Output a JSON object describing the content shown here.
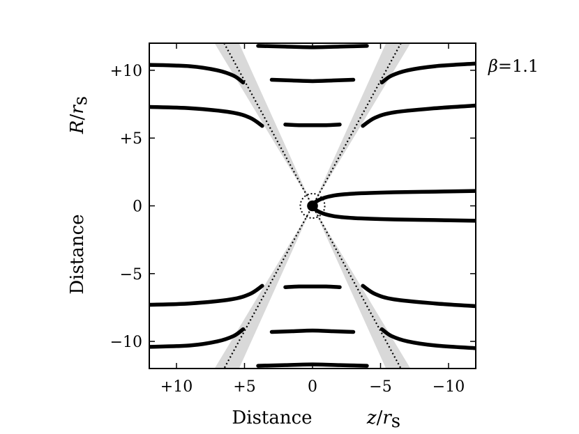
{
  "chart_data": {
    "type": "line",
    "title": "",
    "xlabel": {
      "word": "Distance",
      "symbol": "z",
      "unit_symbol": "r",
      "unit_sub": "s"
    },
    "ylabel": {
      "word": "Distance",
      "symbol": "R",
      "unit_symbol": "r",
      "unit_sub": "s"
    },
    "xlim": [
      12,
      -12
    ],
    "ylim": [
      -12,
      12
    ],
    "x_ticks": [
      {
        "value": 10,
        "label": "+10"
      },
      {
        "value": 5,
        "label": "+5"
      },
      {
        "value": 0,
        "label": "0"
      },
      {
        "value": -5,
        "label": "−5"
      },
      {
        "value": -10,
        "label": "−10"
      }
    ],
    "y_ticks": [
      {
        "value": 10,
        "label": "+10"
      },
      {
        "value": 5,
        "label": "+5"
      },
      {
        "value": 0,
        "label": "0"
      },
      {
        "value": -5,
        "label": "−5"
      },
      {
        "value": -10,
        "label": "−10"
      }
    ],
    "annotation": {
      "symbol": "β",
      "equals": "=",
      "value": "1.1"
    },
    "grid": false,
    "series": [
      {
        "style": "thick",
        "points": [
          [
            -12,
            1.1
          ],
          [
            -9,
            1.05
          ],
          [
            -6,
            1.0
          ],
          [
            -3,
            0.9
          ],
          [
            -1.5,
            0.75
          ],
          [
            -0.5,
            0.45
          ],
          [
            0,
            0
          ],
          [
            -0.5,
            -0.45
          ],
          [
            -1.5,
            -0.75
          ],
          [
            -3,
            -0.9
          ],
          [
            -6,
            -1.0
          ],
          [
            -9,
            -1.05
          ],
          [
            -12,
            -1.1
          ]
        ]
      },
      {
        "style": "thick",
        "points": [
          [
            -2.0,
            6.0
          ],
          [
            -1.0,
            5.95
          ],
          [
            0,
            5.95
          ],
          [
            1.0,
            5.95
          ],
          [
            2.0,
            6.0
          ]
        ]
      },
      {
        "style": "thick",
        "points": [
          [
            -3.0,
            9.3
          ],
          [
            -1.5,
            9.25
          ],
          [
            0,
            9.2
          ],
          [
            1.5,
            9.25
          ],
          [
            3.0,
            9.3
          ]
        ]
      },
      {
        "style": "thick",
        "points": [
          [
            -4.0,
            11.8
          ],
          [
            -2,
            11.75
          ],
          [
            0,
            11.7
          ],
          [
            2,
            11.75
          ],
          [
            4.0,
            11.8
          ]
        ]
      },
      {
        "style": "thick",
        "points": [
          [
            12,
            7.3
          ],
          [
            9,
            7.2
          ],
          [
            6,
            6.9
          ],
          [
            4.6,
            6.5
          ],
          [
            3.7,
            5.9
          ]
        ]
      },
      {
        "style": "thick",
        "points": [
          [
            -3.7,
            5.9
          ],
          [
            -4.6,
            6.5
          ],
          [
            -6,
            6.9
          ],
          [
            -9,
            7.2
          ],
          [
            -12,
            7.4
          ]
        ]
      },
      {
        "style": "thick",
        "points": [
          [
            12,
            10.4
          ],
          [
            9,
            10.3
          ],
          [
            7,
            10.0
          ],
          [
            5.8,
            9.6
          ],
          [
            5.1,
            9.1
          ]
        ]
      },
      {
        "style": "thick",
        "points": [
          [
            -5.1,
            9.1
          ],
          [
            -5.8,
            9.6
          ],
          [
            -7,
            10.0
          ],
          [
            -9,
            10.3
          ],
          [
            -12,
            10.5
          ]
        ]
      },
      {
        "style": "thick",
        "points": [
          [
            -2.0,
            -6.0
          ],
          [
            -1.0,
            -5.95
          ],
          [
            0,
            -5.95
          ],
          [
            1.0,
            -5.95
          ],
          [
            2.0,
            -6.0
          ]
        ]
      },
      {
        "style": "thick",
        "points": [
          [
            -3.0,
            -9.3
          ],
          [
            -1.5,
            -9.25
          ],
          [
            0,
            -9.2
          ],
          [
            1.5,
            -9.25
          ],
          [
            3.0,
            -9.3
          ]
        ]
      },
      {
        "style": "thick",
        "points": [
          [
            -4.0,
            -11.8
          ],
          [
            -2,
            -11.75
          ],
          [
            0,
            -11.7
          ],
          [
            2,
            -11.75
          ],
          [
            4.0,
            -11.8
          ]
        ]
      },
      {
        "style": "thick",
        "points": [
          [
            12,
            -7.3
          ],
          [
            9,
            -7.2
          ],
          [
            6,
            -6.9
          ],
          [
            4.6,
            -6.5
          ],
          [
            3.7,
            -5.9
          ]
        ]
      },
      {
        "style": "thick",
        "points": [
          [
            -3.7,
            -5.9
          ],
          [
            -4.6,
            -6.5
          ],
          [
            -6,
            -6.9
          ],
          [
            -9,
            -7.2
          ],
          [
            -12,
            -7.4
          ]
        ]
      },
      {
        "style": "thick",
        "points": [
          [
            12,
            -10.4
          ],
          [
            9,
            -10.3
          ],
          [
            7,
            -10.0
          ],
          [
            5.8,
            -9.6
          ],
          [
            5.1,
            -9.1
          ]
        ]
      },
      {
        "style": "thick",
        "points": [
          [
            -5.1,
            -9.1
          ],
          [
            -5.8,
            -9.6
          ],
          [
            -7,
            -10.0
          ],
          [
            -9,
            -10.3
          ],
          [
            -12,
            -10.5
          ]
        ]
      }
    ],
    "cone_lines": [
      {
        "style": "dotted",
        "points": [
          [
            6.5,
            12
          ],
          [
            -6.5,
            -12
          ]
        ]
      },
      {
        "style": "dotted",
        "points": [
          [
            -6.5,
            12
          ],
          [
            6.5,
            -12
          ]
        ]
      }
    ],
    "shaded_bands": [
      {
        "points": [
          [
            0,
            0
          ],
          [
            7.2,
            12
          ],
          [
            5.4,
            12
          ]
        ]
      },
      {
        "points": [
          [
            0,
            0
          ],
          [
            -5.4,
            12
          ],
          [
            -7.2,
            12
          ]
        ]
      },
      {
        "points": [
          [
            0,
            0
          ],
          [
            -7.2,
            -12
          ],
          [
            -5.4,
            -12
          ]
        ]
      },
      {
        "points": [
          [
            0,
            0
          ],
          [
            5.4,
            -12
          ],
          [
            7.2,
            -12
          ]
        ]
      }
    ],
    "center_marker": {
      "x": 0,
      "y": 0,
      "ring_radius": 0.9,
      "dot_radius": 0.4
    },
    "colors": {
      "line": "#000000",
      "band": "#d9d9d9",
      "frame": "#000000"
    }
  }
}
